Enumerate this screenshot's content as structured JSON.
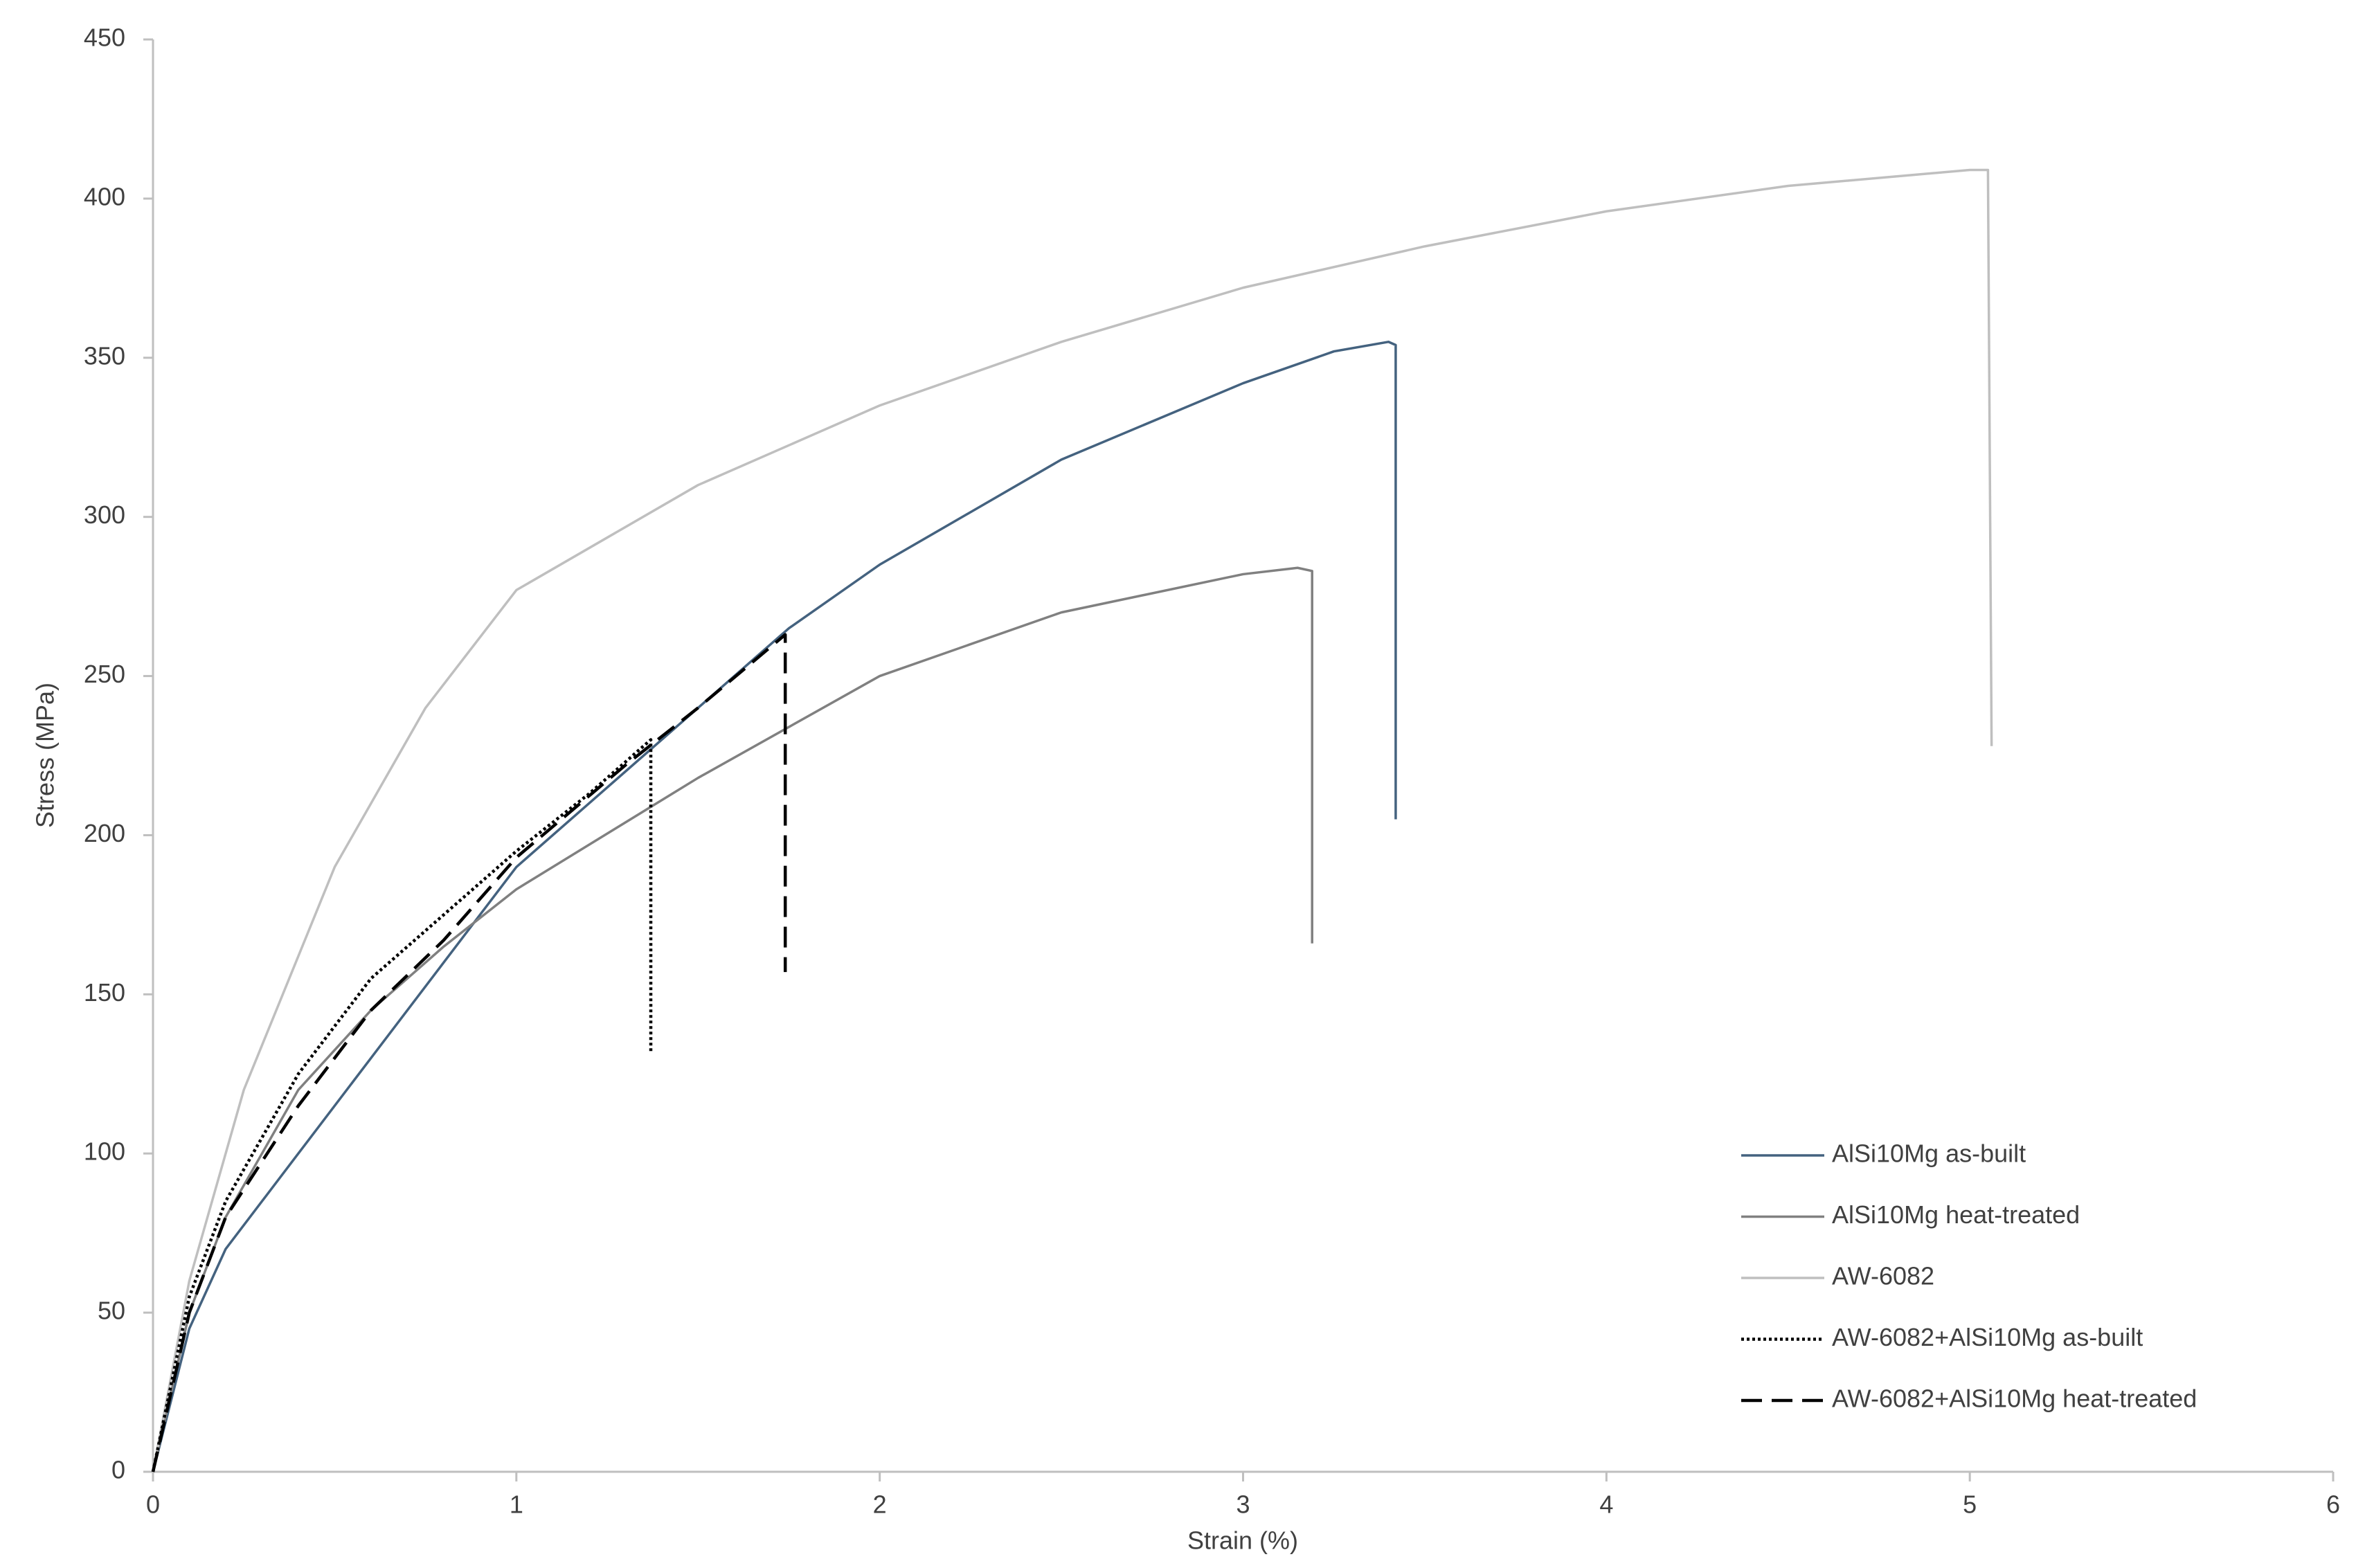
{
  "chart_data": {
    "type": "line",
    "x_label": "Strain (%)",
    "y_label": "Stress (MPa)",
    "xlim": [
      0,
      6
    ],
    "xticks": [
      0,
      1,
      2,
      3,
      4,
      5,
      6
    ],
    "ylim": [
      0,
      450
    ],
    "yticks": [
      0,
      50,
      100,
      150,
      200,
      250,
      300,
      350,
      400,
      450
    ],
    "grid": false,
    "legend": "lower right",
    "series": [
      {
        "name": "AlSi10Mg as-built",
        "color": "#44627f",
        "dash": "solid",
        "x": [
          0,
          0.1,
          0.2,
          0.4,
          0.6,
          0.8,
          1,
          1.5,
          1.75,
          2,
          2.5,
          3,
          3.25,
          3.4,
          3.42,
          3.42
        ],
        "values": [
          0,
          45,
          70,
          100,
          130,
          160,
          190,
          240,
          265,
          285,
          318,
          342,
          352,
          355,
          354,
          205
        ]
      },
      {
        "name": "AlSi10Mg heat-treated",
        "color": "#808080",
        "dash": "solid",
        "x": [
          0,
          0.1,
          0.2,
          0.4,
          0.6,
          0.8,
          1,
          1.5,
          2,
          2.5,
          3,
          3.15,
          3.19,
          3.19
        ],
        "values": [
          0,
          50,
          80,
          120,
          145,
          165,
          183,
          218,
          250,
          270,
          282,
          284,
          283,
          166
        ]
      },
      {
        "name": "AW-6082",
        "color": "#bfbfbf",
        "dash": "solid",
        "x": [
          0,
          0.1,
          0.25,
          0.5,
          0.75,
          1,
          1.5,
          2,
          2.5,
          3,
          3.5,
          4,
          4.5,
          5,
          5.05,
          5.06
        ],
        "values": [
          0,
          60,
          120,
          190,
          240,
          277,
          310,
          335,
          355,
          372,
          385,
          396,
          404,
          409,
          409,
          228
        ]
      },
      {
        "name": "AW-6082+AlSi10Mg as-built",
        "color": "#000000",
        "dash": "dotted",
        "x": [
          0,
          0.1,
          0.2,
          0.4,
          0.6,
          0.8,
          1,
          1.2,
          1.37,
          1.37
        ],
        "values": [
          0,
          55,
          85,
          125,
          155,
          175,
          195,
          213,
          230,
          132
        ]
      },
      {
        "name": "AW-6082+AlSi10Mg heat-treated",
        "color": "#000000",
        "dash": "dashed",
        "x": [
          0,
          0.1,
          0.2,
          0.4,
          0.6,
          0.8,
          1,
          1.3,
          1.5,
          1.74,
          1.74
        ],
        "values": [
          0,
          50,
          80,
          115,
          145,
          167,
          193,
          222,
          240,
          263,
          157
        ]
      }
    ]
  }
}
